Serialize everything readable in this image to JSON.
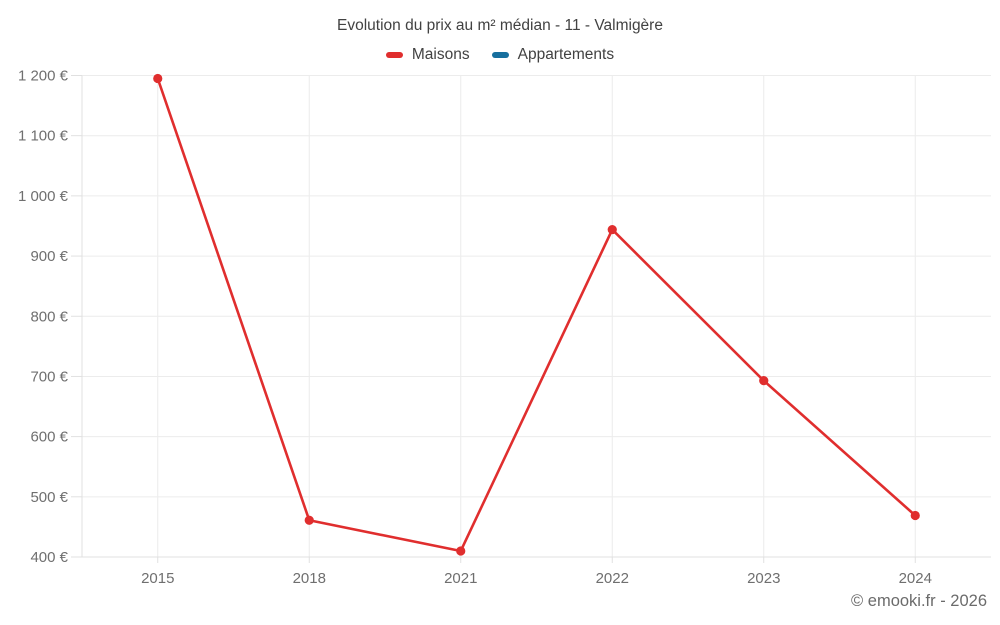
{
  "chart_data": {
    "type": "line",
    "title": "Evolution du prix au m² médian - 11 - Valmigère",
    "categories": [
      "2015",
      "2018",
      "2021",
      "2022",
      "2023",
      "2024"
    ],
    "series": [
      {
        "name": "Maisons",
        "color": "#e02e2e",
        "values": [
          1195,
          461,
          410,
          944,
          693,
          469
        ]
      },
      {
        "name": "Appartements",
        "color": "#176f9e",
        "values": []
      }
    ],
    "ylim": [
      400,
      1200
    ],
    "ytick_step": 100,
    "y_unit": "€",
    "ytick_labels": [
      "400 €",
      "500 €",
      "600 €",
      "700 €",
      "800 €",
      "900 €",
      "1 000 €",
      "1 100 €",
      "1 200 €"
    ],
    "grid": true,
    "legend_position": "top"
  },
  "colors": {
    "gridline": "#ececec",
    "axis_line": "#e0e0e0",
    "axis_text": "#6f6f6f",
    "title_text": "#424242",
    "footer_text": "#6b6b6b"
  },
  "footer": {
    "copyright": "© emooki.fr - 2026"
  }
}
